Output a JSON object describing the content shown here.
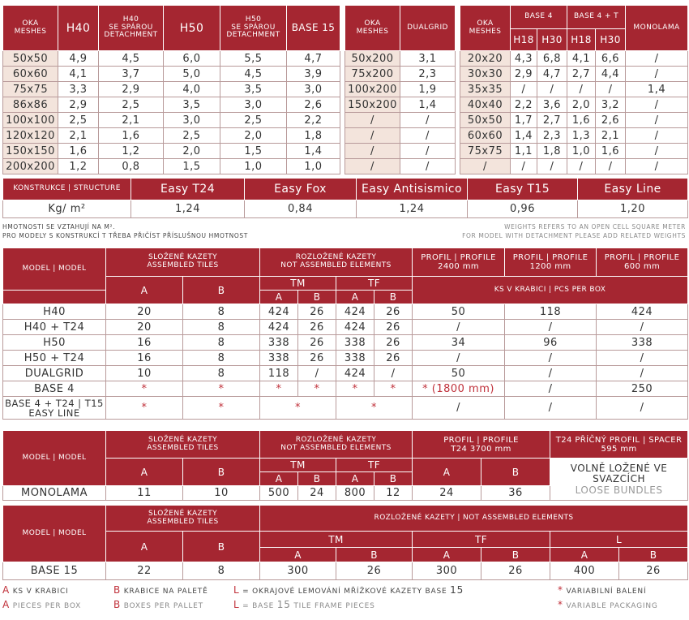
{
  "t1": {
    "headers": [
      "OKA\nMESHES",
      "H40",
      "H40\nSE SPÁROU\nDETACHMENT",
      "H50",
      "H50\nSE SPÁROU\nDETACHMENT",
      "BASE 15"
    ],
    "rows": [
      [
        "50x50",
        "4,9",
        "4,5",
        "6,0",
        "5,5",
        "4,7"
      ],
      [
        "60x60",
        "4,1",
        "3,7",
        "5,0",
        "4,5",
        "3,9"
      ],
      [
        "75x75",
        "3,3",
        "2,9",
        "4,0",
        "3,5",
        "3,0"
      ],
      [
        "86x86",
        "2,9",
        "2,5",
        "3,5",
        "3,0",
        "2,6"
      ],
      [
        "100x100",
        "2,5",
        "2,1",
        "3,0",
        "2,5",
        "2,2"
      ],
      [
        "120x120",
        "2,1",
        "1,6",
        "2,5",
        "2,0",
        "1,8"
      ],
      [
        "150x150",
        "1,6",
        "1,2",
        "2,0",
        "1,5",
        "1,4"
      ],
      [
        "200x200",
        "1,2",
        "0,8",
        "1,5",
        "1,0",
        "1,0"
      ]
    ]
  },
  "t2": {
    "headers": [
      "OKA\nMESHES",
      "DUALGRID"
    ],
    "rows": [
      [
        "50x200",
        "3,1"
      ],
      [
        "75x200",
        "2,3"
      ],
      [
        "100x200",
        "1,9"
      ],
      [
        "150x200",
        "1,4"
      ],
      [
        "/",
        "/"
      ],
      [
        "/",
        "/"
      ],
      [
        "/",
        "/"
      ],
      [
        "/",
        "/"
      ]
    ]
  },
  "t3": {
    "meshes": "OKA\nMESHES",
    "base4": "BASE 4",
    "base4t": "BASE 4 + T",
    "monolama": "MONOLAMA",
    "sub": [
      "H18",
      "H30",
      "H18",
      "H30"
    ],
    "rows": [
      [
        "20x20",
        "4,3",
        "6,8",
        "4,1",
        "6,6",
        "/"
      ],
      [
        "30x30",
        "2,9",
        "4,7",
        "2,7",
        "4,4",
        "/"
      ],
      [
        "35x35",
        "/",
        "/",
        "/",
        "/",
        "1,4"
      ],
      [
        "40x40",
        "2,2",
        "3,6",
        "2,0",
        "3,2",
        "/"
      ],
      [
        "50x50",
        "1,7",
        "2,7",
        "1,6",
        "2,6",
        "/"
      ],
      [
        "60x60",
        "1,4",
        "2,3",
        "1,3",
        "2,1",
        "/"
      ],
      [
        "75x75",
        "1,1",
        "1,8",
        "1,0",
        "1,6",
        "/"
      ],
      [
        "/",
        "/",
        "/",
        "/",
        "/",
        "/"
      ]
    ]
  },
  "structure": {
    "label": "KONSTRUKCE | STRUCTURE",
    "unit": "Kg/ m²",
    "names": [
      "Easy T24",
      "Easy Fox",
      "Easy Antisismico",
      "Easy T15",
      "Easy Line"
    ],
    "values": [
      "1,24",
      "0,84",
      "1,24",
      "0,96",
      "1,20"
    ]
  },
  "notes": {
    "left1": "HMOTNOSTI SE VZTAHUJÍ NA M².",
    "left2": "PRO MODELY S KONSTRUKCÍ T TŘEBA PŘIČÍST PŘÍSLUŠNOU HMOTNOST",
    "right1": "WEIGHTS REFERS TO AN OPEN CELL SQUARE METER",
    "right2": "FOR MODEL WITH DETACHMENT PLEASE ADD RELATED WEIGHTS"
  },
  "p1": {
    "model": "MODEL | MODEL",
    "assembled": "SLOŽENÉ KAZETY\nASSEMBLED TILES",
    "notassembled": "ROZLOŽENÉ KAZETY\nNOT ASSEMBLED ELEMENTS",
    "profile2400": "PROFIL | PROFILE\n2400 mm",
    "profile1200": "PROFIL | PROFILE\n1200 mm",
    "profile600": "PROFIL | PROFILE\n600 mm",
    "a": "A",
    "b": "B",
    "tm": "TM",
    "tf": "TF",
    "pcs": "KS V KRABICI | PCS PER BOX",
    "rows": [
      [
        "H40",
        "20",
        "8",
        "424",
        "26",
        "424",
        "26",
        "50",
        "118",
        "424"
      ],
      [
        "H40 + T24",
        "20",
        "8",
        "424",
        "26",
        "424",
        "26",
        "/",
        "/",
        "/"
      ],
      [
        "H50",
        "16",
        "8",
        "338",
        "26",
        "338",
        "26",
        "34",
        "96",
        "338"
      ],
      [
        "H50 + T24",
        "16",
        "8",
        "338",
        "26",
        "338",
        "26",
        "/",
        "/",
        "/"
      ],
      [
        "DUALGRID",
        "10",
        "8",
        "118",
        "/",
        "424",
        "/",
        "50",
        "/",
        "/"
      ],
      [
        "BASE 4",
        "*",
        "*",
        "*",
        "*",
        "*",
        "*",
        "* (1800 mm)",
        "/",
        "250"
      ]
    ],
    "last": [
      "BASE 4 + T24 | T15\nEASY LINE",
      "*",
      "*",
      "*",
      "*",
      "/",
      "/",
      "/"
    ]
  },
  "p2": {
    "model": "MODEL | MODEL",
    "assembled": "SLOŽENÉ KAZETY\nASSEMBLED TILES",
    "notassembled": "ROZLOŽENÉ KAZETY\nNOT ASSEMBLED ELEMENTS",
    "profile": "PROFIL | PROFILE\nT24 3700 mm",
    "spacer": "T24 PŘÍČNÝ PROFIL | SPACER\n595 mm",
    "a": "A",
    "b": "B",
    "tm": "TM",
    "tf": "TF",
    "loose1": "VOLNĚ LOŽENÉ VE\nSVAZCÍCH",
    "loose2": "LOOSE BUNDLES",
    "row": [
      "MONOLAMA",
      "11",
      "10",
      "500",
      "24",
      "800",
      "12",
      "24",
      "36"
    ]
  },
  "p3": {
    "model": "MODEL | MODEL",
    "assembled": "SLOŽENÉ KAZETY\nASSEMBLED TILES",
    "notassembled": "ROZLOŽENÉ KAZETY | NOT ASSEMBLED ELEMENTS",
    "a": "A",
    "b": "B",
    "tm": "TM",
    "tf": "TF",
    "l": "L",
    "row": [
      "BASE 15",
      "22",
      "8",
      "300",
      "26",
      "300",
      "26",
      "400",
      "26"
    ]
  },
  "legend": {
    "a_key": "A",
    "a_cz": "KS V KRABICI",
    "a_en": "PIECES PER BOX",
    "b_key": "B",
    "b_cz": "KRABICE NA PALETĚ",
    "b_en": "BOXES PER PALLET",
    "l_key": "L",
    "l_cz": "= OKRAJOVÉ LEMOVÁNÍ MŘÍŽKOVÉ KAZETY BASE",
    "l_cz_num": "15",
    "l_en": "= BASE",
    "l_en_num": "15",
    "l_en_tail": "TILE FRAME PIECES",
    "star": "*",
    "star_cz": "VARIABILNÍ BALENÍ",
    "star_en": "VARIABLE PACKAGING"
  },
  "colors": {
    "header": "#a52631",
    "pink": "#f3e4dc",
    "accent": "#c0303a"
  }
}
